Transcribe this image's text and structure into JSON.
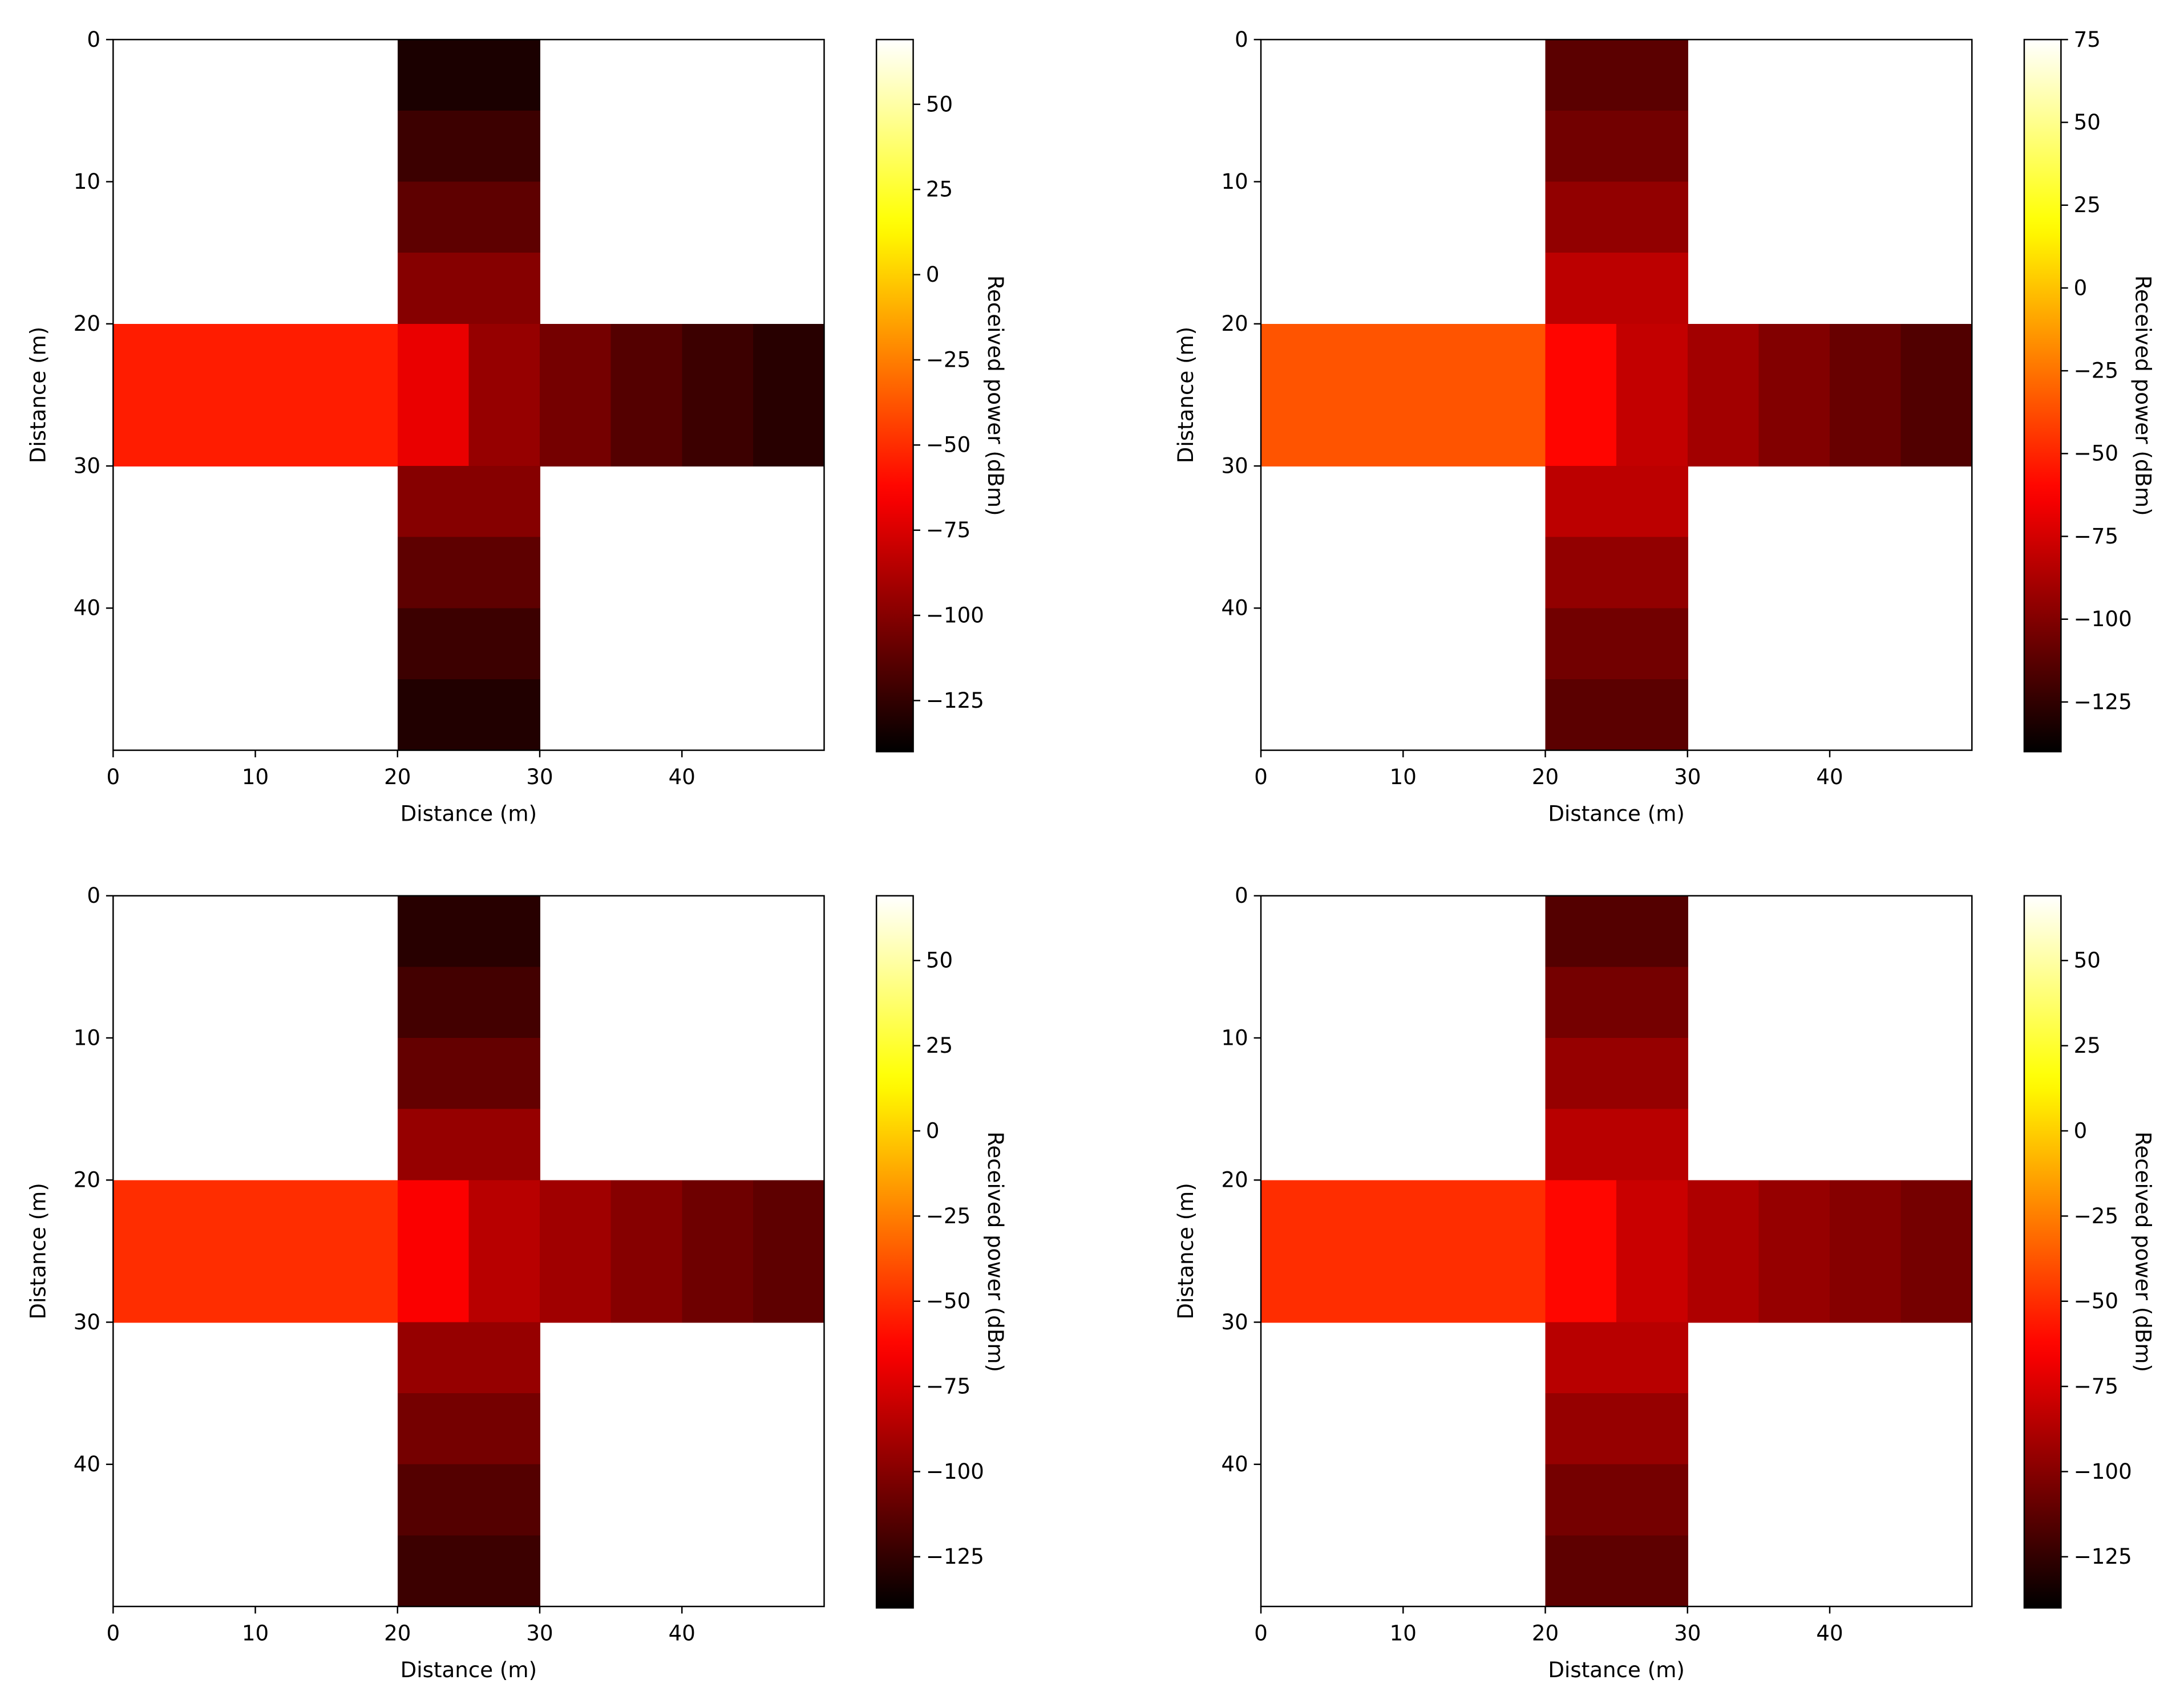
{
  "chart_data": [
    {
      "type": "heatmap",
      "colormap": "hot",
      "xlabel": "Distance (m)",
      "ylabel": "Distance (m)",
      "x": [
        2.5,
        7.5,
        12.5,
        17.5,
        22.5,
        27.5,
        32.5,
        37.5,
        42.5,
        47.5
      ],
      "y": [
        2.5,
        7.5,
        12.5,
        17.5,
        22.5,
        27.5,
        32.5,
        37.5,
        42.5,
        47.5
      ],
      "z": [
        [
          null,
          null,
          null,
          null,
          -132,
          -132,
          null,
          null,
          null,
          null
        ],
        [
          null,
          null,
          null,
          null,
          -122,
          -122,
          null,
          null,
          null,
          null
        ],
        [
          null,
          null,
          null,
          null,
          -112,
          -112,
          null,
          null,
          null,
          null
        ],
        [
          null,
          null,
          null,
          null,
          -100,
          -100,
          null,
          null,
          null,
          null
        ],
        [
          -55,
          -55,
          -55,
          -55,
          -70,
          -95,
          -105,
          -115,
          -122,
          -128
        ],
        [
          -55,
          -55,
          -55,
          -55,
          -70,
          -95,
          -105,
          -115,
          -122,
          -128
        ],
        [
          null,
          null,
          null,
          null,
          -100,
          -100,
          null,
          null,
          null,
          null
        ],
        [
          null,
          null,
          null,
          null,
          -112,
          -112,
          null,
          null,
          null,
          null
        ],
        [
          null,
          null,
          null,
          null,
          -122,
          -122,
          null,
          null,
          null,
          null
        ],
        [
          null,
          null,
          null,
          null,
          -130,
          -130,
          null,
          null,
          null,
          null
        ]
      ],
      "xlim": [
        0,
        50
      ],
      "ylim": [
        50,
        0
      ],
      "xticks": [
        0,
        10,
        20,
        30,
        40
      ],
      "yticks": [
        0,
        10,
        20,
        30,
        40
      ],
      "colorbar_label": "Received power (dBm)",
      "clim": [
        -140,
        69
      ],
      "cticks": [
        {
          "value": -125,
          "label": "−125"
        },
        {
          "value": -100,
          "label": "−100"
        },
        {
          "value": -75,
          "label": "−75"
        },
        {
          "value": -50,
          "label": "−50"
        },
        {
          "value": -25,
          "label": "−25"
        },
        0,
        25,
        50
      ]
    },
    {
      "type": "heatmap",
      "colormap": "hot",
      "xlabel": "Distance (m)",
      "ylabel": "Distance (m)",
      "x": [
        2.5,
        7.5,
        12.5,
        17.5,
        22.5,
        27.5,
        32.5,
        37.5,
        42.5,
        47.5
      ],
      "y": [
        2.5,
        7.5,
        12.5,
        17.5,
        22.5,
        27.5,
        32.5,
        37.5,
        42.5,
        47.5
      ],
      "z": [
        [
          null,
          null,
          null,
          null,
          -112,
          -112,
          null,
          null,
          null,
          null
        ],
        [
          null,
          null,
          null,
          null,
          -105,
          -105,
          null,
          null,
          null,
          null
        ],
        [
          null,
          null,
          null,
          null,
          -95,
          -95,
          null,
          null,
          null,
          null
        ],
        [
          null,
          null,
          null,
          null,
          -82,
          -82,
          null,
          null,
          null,
          null
        ],
        [
          -35,
          -35,
          -35,
          -35,
          -60,
          -80,
          -90,
          -100,
          -108,
          -115
        ],
        [
          -35,
          -35,
          -35,
          -35,
          -60,
          -80,
          -90,
          -100,
          -108,
          -115
        ],
        [
          null,
          null,
          null,
          null,
          -82,
          -82,
          null,
          null,
          null,
          null
        ],
        [
          null,
          null,
          null,
          null,
          -95,
          -95,
          null,
          null,
          null,
          null
        ],
        [
          null,
          null,
          null,
          null,
          -105,
          -105,
          null,
          null,
          null,
          null
        ],
        [
          null,
          null,
          null,
          null,
          -112,
          -112,
          null,
          null,
          null,
          null
        ]
      ],
      "xlim": [
        0,
        50
      ],
      "ylim": [
        50,
        0
      ],
      "xticks": [
        0,
        10,
        20,
        30,
        40
      ],
      "yticks": [
        0,
        10,
        20,
        30,
        40
      ],
      "colorbar_label": "Received power (dBm)",
      "clim": [
        -140,
        75
      ],
      "cticks": [
        {
          "value": -125,
          "label": "−125"
        },
        {
          "value": -100,
          "label": "−100"
        },
        {
          "value": -75,
          "label": "−75"
        },
        {
          "value": -50,
          "label": "−50"
        },
        {
          "value": -25,
          "label": "−25"
        },
        0,
        25,
        50,
        75
      ]
    },
    {
      "type": "heatmap",
      "colormap": "hot",
      "xlabel": "Distance (m)",
      "ylabel": "Distance (m)",
      "x": [
        2.5,
        7.5,
        12.5,
        17.5,
        22.5,
        27.5,
        32.5,
        37.5,
        42.5,
        47.5
      ],
      "y": [
        2.5,
        7.5,
        12.5,
        17.5,
        22.5,
        27.5,
        32.5,
        37.5,
        42.5,
        47.5
      ],
      "z": [
        [
          null,
          null,
          null,
          null,
          -128,
          -128,
          null,
          null,
          null,
          null
        ],
        [
          null,
          null,
          null,
          null,
          -120,
          -120,
          null,
          null,
          null,
          null
        ],
        [
          null,
          null,
          null,
          null,
          -110,
          -110,
          null,
          null,
          null,
          null
        ],
        [
          null,
          null,
          null,
          null,
          -95,
          -95,
          null,
          null,
          null,
          null
        ],
        [
          -50,
          -50,
          -50,
          -50,
          -65,
          -85,
          -92,
          -100,
          -107,
          -112
        ],
        [
          -50,
          -50,
          -50,
          -50,
          -65,
          -85,
          -92,
          -100,
          -107,
          -112
        ],
        [
          null,
          null,
          null,
          null,
          -95,
          -95,
          null,
          null,
          null,
          null
        ],
        [
          null,
          null,
          null,
          null,
          -105,
          -105,
          null,
          null,
          null,
          null
        ],
        [
          null,
          null,
          null,
          null,
          -115,
          -115,
          null,
          null,
          null,
          null
        ],
        [
          null,
          null,
          null,
          null,
          -122,
          -122,
          null,
          null,
          null,
          null
        ]
      ],
      "xlim": [
        0,
        50
      ],
      "ylim": [
        50,
        0
      ],
      "xticks": [
        0,
        10,
        20,
        30,
        40
      ],
      "yticks": [
        0,
        10,
        20,
        30,
        40
      ],
      "colorbar_label": "Received power (dBm)",
      "clim": [
        -140,
        69
      ],
      "cticks": [
        {
          "value": -125,
          "label": "−125"
        },
        {
          "value": -100,
          "label": "−100"
        },
        {
          "value": -75,
          "label": "−75"
        },
        {
          "value": -50,
          "label": "−50"
        },
        {
          "value": -25,
          "label": "−25"
        },
        0,
        25,
        50
      ]
    },
    {
      "type": "heatmap",
      "colormap": "hot",
      "xlabel": "Distance (m)",
      "ylabel": "Distance (m)",
      "x": [
        2.5,
        7.5,
        12.5,
        17.5,
        22.5,
        27.5,
        32.5,
        37.5,
        42.5,
        47.5
      ],
      "y": [
        2.5,
        7.5,
        12.5,
        17.5,
        22.5,
        27.5,
        32.5,
        37.5,
        42.5,
        47.5
      ],
      "z": [
        [
          null,
          null,
          null,
          null,
          -115,
          -115,
          null,
          null,
          null,
          null
        ],
        [
          null,
          null,
          null,
          null,
          -105,
          -105,
          null,
          null,
          null,
          null
        ],
        [
          null,
          null,
          null,
          null,
          -95,
          -95,
          null,
          null,
          null,
          null
        ],
        [
          null,
          null,
          null,
          null,
          -85,
          -85,
          null,
          null,
          null,
          null
        ],
        [
          -50,
          -50,
          -50,
          -50,
          -62,
          -80,
          -88,
          -95,
          -100,
          -105
        ],
        [
          -50,
          -50,
          -50,
          -50,
          -62,
          -80,
          -88,
          -95,
          -100,
          -105
        ],
        [
          null,
          null,
          null,
          null,
          -85,
          -85,
          null,
          null,
          null,
          null
        ],
        [
          null,
          null,
          null,
          null,
          -95,
          -95,
          null,
          null,
          null,
          null
        ],
        [
          null,
          null,
          null,
          null,
          -105,
          -105,
          null,
          null,
          null,
          null
        ],
        [
          null,
          null,
          null,
          null,
          -112,
          -112,
          null,
          null,
          null,
          null
        ]
      ],
      "xlim": [
        0,
        50
      ],
      "ylim": [
        50,
        0
      ],
      "xticks": [
        0,
        10,
        20,
        30,
        40
      ],
      "yticks": [
        0,
        10,
        20,
        30,
        40
      ],
      "colorbar_label": "Received power (dBm)",
      "clim": [
        -140,
        69
      ],
      "cticks": [
        {
          "value": -125,
          "label": "−125"
        },
        {
          "value": -100,
          "label": "−100"
        },
        {
          "value": -75,
          "label": "−75"
        },
        {
          "value": -50,
          "label": "−50"
        },
        {
          "value": -25,
          "label": "−25"
        },
        0,
        25,
        50
      ]
    }
  ]
}
